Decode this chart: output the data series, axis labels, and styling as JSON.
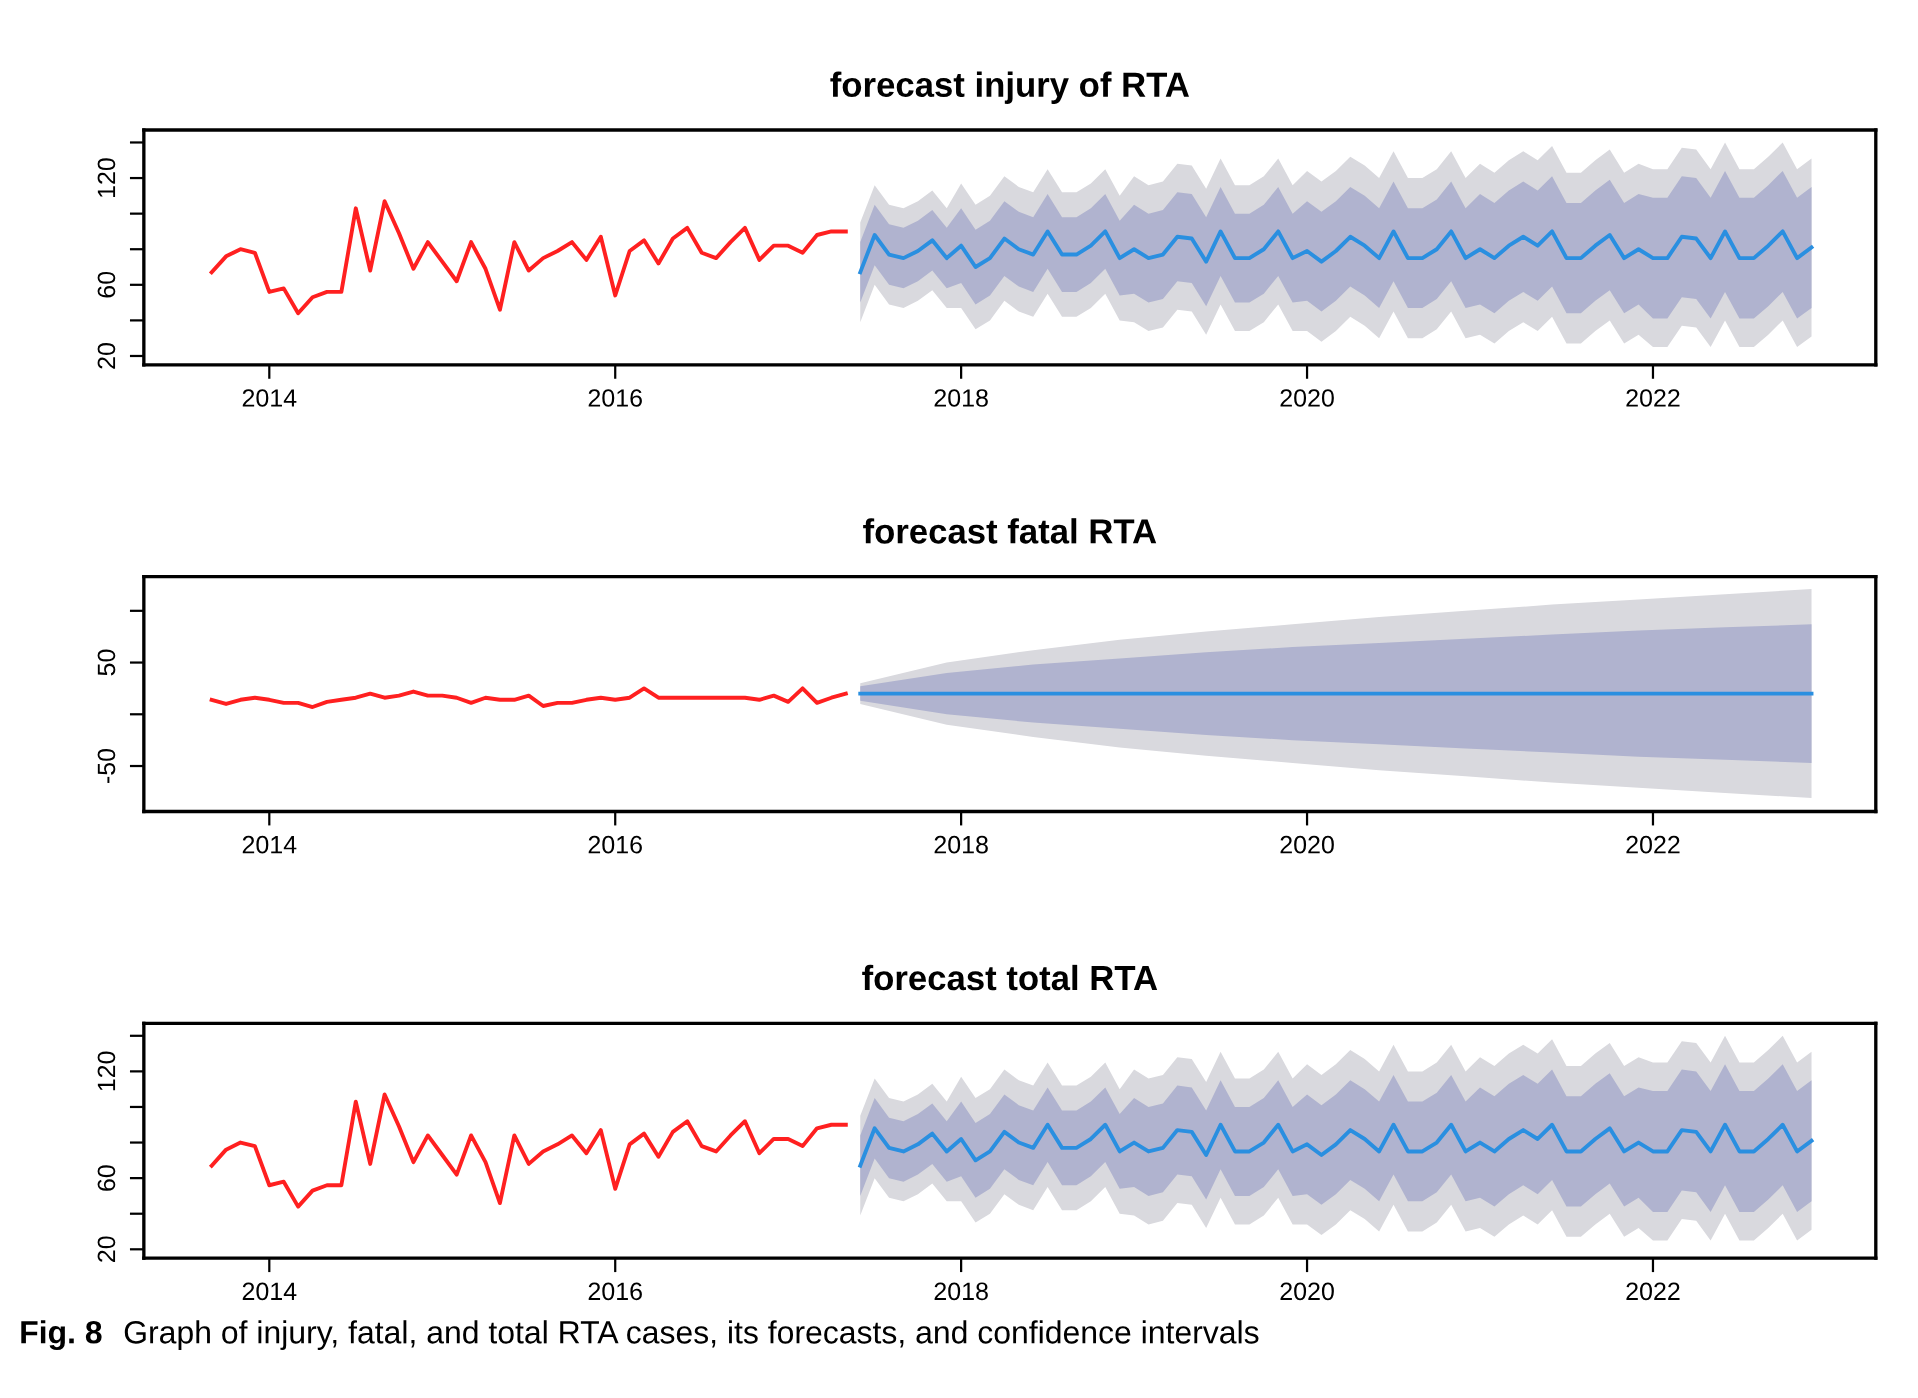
{
  "chart_data": [
    {
      "type": "line",
      "title": "forecast injury of RTA",
      "xlim": [
        "2013-04-10",
        "2023-04-15"
      ],
      "xticks": [
        "2014",
        "2016",
        "2018",
        "2020",
        "2022"
      ],
      "ylim": [
        15,
        147
      ],
      "yticks": [
        {
          "value": 20,
          "label": "20"
        },
        {
          "value": 40,
          "label": null
        },
        {
          "value": 60,
          "label": "60"
        },
        {
          "value": 80,
          "label": null
        },
        {
          "value": 100,
          "label": null
        },
        {
          "value": 120,
          "label": "120"
        },
        {
          "value": 140,
          "label": null
        }
      ],
      "series": [
        {
          "color": "#ff2020",
          "x": [
            "2013-09",
            "2013-10",
            "2013-11",
            "2013-12",
            "2014-01",
            "2014-02",
            "2014-03",
            "2014-04",
            "2014-05",
            "2014-06",
            "2014-07",
            "2014-08",
            "2014-09",
            "2014-10",
            "2014-11",
            "2014-12",
            "2015-01",
            "2015-02",
            "2015-03",
            "2015-04",
            "2015-05",
            "2015-06",
            "2015-07",
            "2015-08",
            "2015-09",
            "2015-10",
            "2015-11",
            "2015-12",
            "2016-01",
            "2016-02",
            "2016-03",
            "2016-04",
            "2016-05",
            "2016-06",
            "2016-07",
            "2016-08",
            "2016-09",
            "2016-10",
            "2016-11",
            "2016-12",
            "2017-01",
            "2017-02",
            "2017-03",
            "2017-04",
            "2017-05"
          ],
          "values": [
            67,
            76,
            80,
            78,
            56,
            58,
            44,
            53,
            56,
            56,
            103,
            68,
            107,
            89,
            69,
            84,
            73,
            62,
            84,
            69,
            46,
            84,
            68,
            75,
            79,
            84,
            74,
            87,
            54,
            79,
            85,
            72,
            86,
            92,
            78,
            75,
            84,
            92,
            74,
            82,
            82,
            78,
            88,
            90,
            90
          ]
        },
        {
          "color": "#d9d9de",
          "x": [
            "2017-06",
            "2017-07",
            "2017-08",
            "2017-09",
            "2017-10",
            "2017-11",
            "2017-12",
            "2018-01",
            "2018-02",
            "2018-03",
            "2018-04",
            "2018-05",
            "2018-06",
            "2018-07",
            "2018-08",
            "2018-09",
            "2018-10",
            "2018-11",
            "2018-12",
            "2019-01",
            "2019-02",
            "2019-03",
            "2019-04",
            "2019-05",
            "2019-06",
            "2019-07",
            "2019-08",
            "2019-09",
            "2019-10",
            "2019-11",
            "2019-12",
            "2020-01",
            "2020-02",
            "2020-03",
            "2020-04",
            "2020-05",
            "2020-06",
            "2020-07",
            "2020-08",
            "2020-09",
            "2020-10",
            "2020-11",
            "2020-12",
            "2021-01",
            "2021-02",
            "2021-03",
            "2021-04",
            "2021-05",
            "2021-06",
            "2021-07",
            "2021-08",
            "2021-09",
            "2021-10",
            "2021-11",
            "2021-12",
            "2022-01",
            "2022-02",
            "2022-03",
            "2022-04",
            "2022-05",
            "2022-06",
            "2022-07",
            "2022-08",
            "2022-09",
            "2022-10",
            "2022-11",
            "2022-12"
          ],
          "values": [
            null,
            null,
            null,
            null,
            null,
            null,
            null,
            null,
            null,
            null,
            null,
            null,
            null,
            null,
            null,
            null,
            null,
            null,
            null,
            null,
            null,
            null,
            null,
            null,
            null,
            null,
            null,
            null,
            null,
            null,
            null,
            null,
            null,
            null,
            null,
            null,
            null,
            null,
            null,
            null,
            null,
            null,
            null,
            null,
            null,
            null,
            null,
            null,
            null,
            null,
            null,
            null,
            null,
            null,
            null,
            null,
            null,
            null,
            null,
            null,
            null,
            null,
            null,
            null,
            null,
            null,
            null
          ],
          "upper": [
            95,
            116,
            105,
            103,
            107,
            113,
            103,
            117,
            105,
            110,
            121,
            115,
            112,
            125,
            112,
            112,
            117,
            125,
            110,
            121,
            116,
            118,
            128,
            127,
            114,
            131,
            116,
            116,
            121,
            131,
            116,
            124,
            118,
            124,
            132,
            127,
            120,
            135,
            120,
            120,
            125,
            135,
            120,
            128,
            123,
            130,
            135,
            130,
            138,
            123,
            123,
            130,
            136,
            123,
            128,
            125,
            125,
            137,
            136,
            125,
            140,
            125,
            125,
            132,
            140,
            125,
            131
          ],
          "lower": [
            39,
            60,
            49,
            47,
            51,
            57,
            47,
            47,
            35,
            40,
            51,
            45,
            42,
            55,
            42,
            42,
            47,
            55,
            40,
            39,
            34,
            36,
            46,
            45,
            32,
            49,
            34,
            34,
            39,
            49,
            34,
            34,
            28,
            34,
            42,
            37,
            30,
            45,
            30,
            30,
            35,
            45,
            30,
            32,
            27,
            34,
            39,
            34,
            42,
            27,
            27,
            34,
            40,
            27,
            32,
            25,
            25,
            37,
            36,
            25,
            40,
            25,
            25,
            32,
            40,
            25,
            31
          ]
        },
        {
          "color": "#b0b3cf",
          "x": [
            "2017-06",
            "2017-07",
            "2017-08",
            "2017-09",
            "2017-10",
            "2017-11",
            "2017-12",
            "2018-01",
            "2018-02",
            "2018-03",
            "2018-04",
            "2018-05",
            "2018-06",
            "2018-07",
            "2018-08",
            "2018-09",
            "2018-10",
            "2018-11",
            "2018-12",
            "2019-01",
            "2019-02",
            "2019-03",
            "2019-04",
            "2019-05",
            "2019-06",
            "2019-07",
            "2019-08",
            "2019-09",
            "2019-10",
            "2019-11",
            "2019-12",
            "2020-01",
            "2020-02",
            "2020-03",
            "2020-04",
            "2020-05",
            "2020-06",
            "2020-07",
            "2020-08",
            "2020-09",
            "2020-10",
            "2020-11",
            "2020-12",
            "2021-01",
            "2021-02",
            "2021-03",
            "2021-04",
            "2021-05",
            "2021-06",
            "2021-07",
            "2021-08",
            "2021-09",
            "2021-10",
            "2021-11",
            "2021-12",
            "2022-01",
            "2022-02",
            "2022-03",
            "2022-04",
            "2022-05",
            "2022-06",
            "2022-07",
            "2022-08",
            "2022-09",
            "2022-10",
            "2022-11",
            "2022-12"
          ],
          "values": [
            null,
            null,
            null,
            null,
            null,
            null,
            null,
            null,
            null,
            null,
            null,
            null,
            null,
            null,
            null,
            null,
            null,
            null,
            null,
            null,
            null,
            null,
            null,
            null,
            null,
            null,
            null,
            null,
            null,
            null,
            null,
            null,
            null,
            null,
            null,
            null,
            null,
            null,
            null,
            null,
            null,
            null,
            null,
            null,
            null,
            null,
            null,
            null,
            null,
            null,
            null,
            null,
            null,
            null,
            null,
            null,
            null,
            null,
            null,
            null,
            null,
            null,
            null,
            null,
            null,
            null,
            null
          ],
          "upper": [
            84,
            105,
            94,
            92,
            96,
            102,
            92,
            103,
            91,
            96,
            107,
            101,
            98,
            111,
            98,
            98,
            103,
            111,
            96,
            105,
            100,
            102,
            112,
            111,
            98,
            115,
            100,
            100,
            105,
            115,
            100,
            107,
            101,
            107,
            115,
            110,
            103,
            118,
            103,
            103,
            108,
            118,
            103,
            111,
            106,
            113,
            118,
            113,
            121,
            106,
            106,
            113,
            119,
            106,
            111,
            109,
            109,
            121,
            120,
            109,
            124,
            109,
            109,
            116,
            124,
            109,
            115
          ],
          "lower": [
            50,
            71,
            60,
            58,
            62,
            68,
            58,
            61,
            49,
            54,
            65,
            59,
            56,
            69,
            56,
            56,
            61,
            69,
            54,
            55,
            50,
            52,
            62,
            61,
            48,
            65,
            50,
            50,
            55,
            65,
            50,
            51,
            45,
            51,
            59,
            54,
            47,
            62,
            47,
            47,
            52,
            62,
            47,
            49,
            44,
            51,
            56,
            51,
            59,
            44,
            44,
            51,
            57,
            44,
            49,
            41,
            41,
            53,
            52,
            41,
            56,
            41,
            41,
            48,
            56,
            41,
            47
          ]
        },
        {
          "color": "#2a8fe0",
          "x": [
            "2017-06",
            "2017-07",
            "2017-08",
            "2017-09",
            "2017-10",
            "2017-11",
            "2017-12",
            "2018-01",
            "2018-02",
            "2018-03",
            "2018-04",
            "2018-05",
            "2018-06",
            "2018-07",
            "2018-08",
            "2018-09",
            "2018-10",
            "2018-11",
            "2018-12",
            "2019-01",
            "2019-02",
            "2019-03",
            "2019-04",
            "2019-05",
            "2019-06",
            "2019-07",
            "2019-08",
            "2019-09",
            "2019-10",
            "2019-11",
            "2019-12",
            "2020-01",
            "2020-02",
            "2020-03",
            "2020-04",
            "2020-05",
            "2020-06",
            "2020-07",
            "2020-08",
            "2020-09",
            "2020-10",
            "2020-11",
            "2020-12",
            "2021-01",
            "2021-02",
            "2021-03",
            "2021-04",
            "2021-05",
            "2021-06",
            "2021-07",
            "2021-08",
            "2021-09",
            "2021-10",
            "2021-11",
            "2021-12",
            "2022-01",
            "2022-02",
            "2022-03",
            "2022-04",
            "2022-05",
            "2022-06",
            "2022-07",
            "2022-08",
            "2022-09",
            "2022-10",
            "2022-11",
            "2022-12"
          ],
          "values": [
            67,
            88,
            77,
            75,
            79,
            85,
            75,
            82,
            70,
            75,
            86,
            80,
            77,
            90,
            77,
            77,
            82,
            90,
            75,
            80,
            75,
            77,
            87,
            86,
            73,
            90,
            75,
            75,
            80,
            90,
            75,
            79,
            73,
            79,
            87,
            82,
            75,
            90,
            75,
            75,
            80,
            90,
            75,
            80,
            75,
            82,
            87,
            82,
            90,
            75,
            75,
            82,
            88,
            75,
            80,
            75,
            75,
            87,
            86,
            75,
            90,
            75,
            75,
            82,
            90,
            75,
            81
          ]
        }
      ]
    },
    {
      "type": "line",
      "title": "forecast fatal RTA",
      "xlim": [
        "2013-04-10",
        "2023-04-15"
      ],
      "xticks": [
        "2014",
        "2016",
        "2018",
        "2020",
        "2022"
      ],
      "ylim": [
        -94,
        133
      ],
      "yticks": [
        {
          "value": -50,
          "label": "-50"
        },
        {
          "value": 0,
          "label": null
        },
        {
          "value": 50,
          "label": "50"
        },
        {
          "value": 100,
          "label": null
        }
      ],
      "series": [
        {
          "color": "#ff2020",
          "x": [
            "2013-09",
            "2013-10",
            "2013-11",
            "2013-12",
            "2014-01",
            "2014-02",
            "2014-03",
            "2014-04",
            "2014-05",
            "2014-06",
            "2014-07",
            "2014-08",
            "2014-09",
            "2014-10",
            "2014-11",
            "2014-12",
            "2015-01",
            "2015-02",
            "2015-03",
            "2015-04",
            "2015-05",
            "2015-06",
            "2015-07",
            "2015-08",
            "2015-09",
            "2015-10",
            "2015-11",
            "2015-12",
            "2016-01",
            "2016-02",
            "2016-03",
            "2016-04",
            "2016-05",
            "2016-06",
            "2016-07",
            "2016-08",
            "2016-09",
            "2016-10",
            "2016-11",
            "2016-12",
            "2017-01",
            "2017-02",
            "2017-03",
            "2017-04",
            "2017-05"
          ],
          "values": [
            14,
            10,
            14,
            16,
            14,
            11,
            11,
            7,
            12,
            14,
            16,
            20,
            16,
            18,
            22,
            18,
            18,
            16,
            11,
            16,
            14,
            14,
            18,
            8,
            11,
            11,
            14,
            16,
            14,
            16,
            25,
            16,
            16,
            16,
            16,
            16,
            16,
            16,
            14,
            18,
            12,
            25,
            11,
            16,
            20
          ]
        },
        {
          "color": "#d9d9de",
          "x": [
            "2017-06",
            "2017-12",
            "2018-06",
            "2018-12",
            "2019-06",
            "2019-12",
            "2020-06",
            "2020-12",
            "2021-06",
            "2021-12",
            "2022-06",
            "2022-12"
          ],
          "values": [
            null,
            null,
            null,
            null,
            null,
            null,
            null,
            null,
            null,
            null,
            null,
            null
          ],
          "upper": [
            30,
            50,
            62,
            72,
            80,
            87,
            94,
            100,
            106,
            111,
            116,
            121
          ],
          "lower": [
            10,
            -10,
            -22,
            -32,
            -40,
            -47,
            -54,
            -60,
            -66,
            -71,
            -76,
            -81
          ]
        },
        {
          "color": "#b0b3cf",
          "x": [
            "2017-06",
            "2017-12",
            "2018-06",
            "2018-12",
            "2019-06",
            "2019-12",
            "2020-06",
            "2020-12",
            "2021-06",
            "2021-12",
            "2022-06",
            "2022-12"
          ],
          "values": [
            null,
            null,
            null,
            null,
            null,
            null,
            null,
            null,
            null,
            null,
            null,
            null
          ],
          "upper": [
            27,
            40,
            48,
            54,
            60,
            65,
            69,
            73,
            77,
            81,
            84,
            87
          ],
          "lower": [
            13,
            0,
            -8,
            -14,
            -20,
            -25,
            -29,
            -33,
            -37,
            -41,
            -44,
            -47
          ]
        },
        {
          "color": "#2a8fe0",
          "x": [
            "2017-06",
            "2017-12",
            "2018-06",
            "2018-12",
            "2019-06",
            "2019-12",
            "2020-06",
            "2020-12",
            "2021-06",
            "2021-12",
            "2022-06",
            "2022-12"
          ],
          "values": [
            20,
            20,
            20,
            20,
            20,
            20,
            20,
            20,
            20,
            20,
            20,
            20
          ]
        }
      ]
    },
    {
      "type": "line",
      "title": "forecast total RTA",
      "xlim": [
        "2013-04-10",
        "2023-04-15"
      ],
      "xticks": [
        "2014",
        "2016",
        "2018",
        "2020",
        "2022"
      ],
      "ylim": [
        15,
        147
      ],
      "yticks": [
        {
          "value": 20,
          "label": "20"
        },
        {
          "value": 40,
          "label": null
        },
        {
          "value": 60,
          "label": "60"
        },
        {
          "value": 80,
          "label": null
        },
        {
          "value": 100,
          "label": null
        },
        {
          "value": 120,
          "label": "120"
        },
        {
          "value": 140,
          "label": null
        }
      ],
      "annotations": [
        "Fig. 8",
        "Graph of injury, fatal, and total RTA cases, its forecasts, and confidence intervals"
      ],
      "series": [
        {
          "color": "#ff2020",
          "x": [
            "2013-09",
            "2013-10",
            "2013-11",
            "2013-12",
            "2014-01",
            "2014-02",
            "2014-03",
            "2014-04",
            "2014-05",
            "2014-06",
            "2014-07",
            "2014-08",
            "2014-09",
            "2014-10",
            "2014-11",
            "2014-12",
            "2015-01",
            "2015-02",
            "2015-03",
            "2015-04",
            "2015-05",
            "2015-06",
            "2015-07",
            "2015-08",
            "2015-09",
            "2015-10",
            "2015-11",
            "2015-12",
            "2016-01",
            "2016-02",
            "2016-03",
            "2016-04",
            "2016-05",
            "2016-06",
            "2016-07",
            "2016-08",
            "2016-09",
            "2016-10",
            "2016-11",
            "2016-12",
            "2017-01",
            "2017-02",
            "2017-03",
            "2017-04",
            "2017-05"
          ],
          "values": [
            67,
            76,
            80,
            78,
            56,
            58,
            44,
            53,
            56,
            56,
            103,
            68,
            107,
            89,
            69,
            84,
            73,
            62,
            84,
            69,
            46,
            84,
            68,
            75,
            79,
            84,
            74,
            87,
            54,
            79,
            85,
            72,
            86,
            92,
            78,
            75,
            84,
            92,
            74,
            82,
            82,
            78,
            88,
            90,
            90
          ]
        },
        {
          "color": "#d9d9de",
          "x": [
            "2017-06",
            "2017-07",
            "2017-08",
            "2017-09",
            "2017-10",
            "2017-11",
            "2017-12",
            "2018-01",
            "2018-02",
            "2018-03",
            "2018-04",
            "2018-05",
            "2018-06",
            "2018-07",
            "2018-08",
            "2018-09",
            "2018-10",
            "2018-11",
            "2018-12",
            "2019-01",
            "2019-02",
            "2019-03",
            "2019-04",
            "2019-05",
            "2019-06",
            "2019-07",
            "2019-08",
            "2019-09",
            "2019-10",
            "2019-11",
            "2019-12",
            "2020-01",
            "2020-02",
            "2020-03",
            "2020-04",
            "2020-05",
            "2020-06",
            "2020-07",
            "2020-08",
            "2020-09",
            "2020-10",
            "2020-11",
            "2020-12",
            "2021-01",
            "2021-02",
            "2021-03",
            "2021-04",
            "2021-05",
            "2021-06",
            "2021-07",
            "2021-08",
            "2021-09",
            "2021-10",
            "2021-11",
            "2021-12",
            "2022-01",
            "2022-02",
            "2022-03",
            "2022-04",
            "2022-05",
            "2022-06",
            "2022-07",
            "2022-08",
            "2022-09",
            "2022-10",
            "2022-11",
            "2022-12"
          ],
          "values": [
            null,
            null,
            null,
            null,
            null,
            null,
            null,
            null,
            null,
            null,
            null,
            null,
            null,
            null,
            null,
            null,
            null,
            null,
            null,
            null,
            null,
            null,
            null,
            null,
            null,
            null,
            null,
            null,
            null,
            null,
            null,
            null,
            null,
            null,
            null,
            null,
            null,
            null,
            null,
            null,
            null,
            null,
            null,
            null,
            null,
            null,
            null,
            null,
            null,
            null,
            null,
            null,
            null,
            null,
            null,
            null,
            null,
            null,
            null,
            null,
            null,
            null,
            null,
            null,
            null,
            null,
            null
          ],
          "upper": [
            95,
            116,
            105,
            103,
            107,
            113,
            103,
            117,
            105,
            110,
            121,
            115,
            112,
            125,
            112,
            112,
            117,
            125,
            110,
            121,
            116,
            118,
            128,
            127,
            114,
            131,
            116,
            116,
            121,
            131,
            116,
            124,
            118,
            124,
            132,
            127,
            120,
            135,
            120,
            120,
            125,
            135,
            120,
            128,
            123,
            130,
            135,
            130,
            138,
            123,
            123,
            130,
            136,
            123,
            128,
            125,
            125,
            137,
            136,
            125,
            140,
            125,
            125,
            132,
            140,
            125,
            131
          ],
          "lower": [
            39,
            60,
            49,
            47,
            51,
            57,
            47,
            47,
            35,
            40,
            51,
            45,
            42,
            55,
            42,
            42,
            47,
            55,
            40,
            39,
            34,
            36,
            46,
            45,
            32,
            49,
            34,
            34,
            39,
            49,
            34,
            34,
            28,
            34,
            42,
            37,
            30,
            45,
            30,
            30,
            35,
            45,
            30,
            32,
            27,
            34,
            39,
            34,
            42,
            27,
            27,
            34,
            40,
            27,
            32,
            25,
            25,
            37,
            36,
            25,
            40,
            25,
            25,
            32,
            40,
            25,
            31
          ]
        },
        {
          "color": "#b0b3cf",
          "x": [
            "2017-06",
            "2017-07",
            "2017-08",
            "2017-09",
            "2017-10",
            "2017-11",
            "2017-12",
            "2018-01",
            "2018-02",
            "2018-03",
            "2018-04",
            "2018-05",
            "2018-06",
            "2018-07",
            "2018-08",
            "2018-09",
            "2018-10",
            "2018-11",
            "2018-12",
            "2019-01",
            "2019-02",
            "2019-03",
            "2019-04",
            "2019-05",
            "2019-06",
            "2019-07",
            "2019-08",
            "2019-09",
            "2019-10",
            "2019-11",
            "2019-12",
            "2020-01",
            "2020-02",
            "2020-03",
            "2020-04",
            "2020-05",
            "2020-06",
            "2020-07",
            "2020-08",
            "2020-09",
            "2020-10",
            "2020-11",
            "2020-12",
            "2021-01",
            "2021-02",
            "2021-03",
            "2021-04",
            "2021-05",
            "2021-06",
            "2021-07",
            "2021-08",
            "2021-09",
            "2021-10",
            "2021-11",
            "2021-12",
            "2022-01",
            "2022-02",
            "2022-03",
            "2022-04",
            "2022-05",
            "2022-06",
            "2022-07",
            "2022-08",
            "2022-09",
            "2022-10",
            "2022-11",
            "2022-12"
          ],
          "values": [
            null,
            null,
            null,
            null,
            null,
            null,
            null,
            null,
            null,
            null,
            null,
            null,
            null,
            null,
            null,
            null,
            null,
            null,
            null,
            null,
            null,
            null,
            null,
            null,
            null,
            null,
            null,
            null,
            null,
            null,
            null,
            null,
            null,
            null,
            null,
            null,
            null,
            null,
            null,
            null,
            null,
            null,
            null,
            null,
            null,
            null,
            null,
            null,
            null,
            null,
            null,
            null,
            null,
            null,
            null,
            null,
            null,
            null,
            null,
            null,
            null,
            null,
            null,
            null,
            null,
            null,
            null
          ],
          "upper": [
            84,
            105,
            94,
            92,
            96,
            102,
            92,
            103,
            91,
            96,
            107,
            101,
            98,
            111,
            98,
            98,
            103,
            111,
            96,
            105,
            100,
            102,
            112,
            111,
            98,
            115,
            100,
            100,
            105,
            115,
            100,
            107,
            101,
            107,
            115,
            110,
            103,
            118,
            103,
            103,
            108,
            118,
            103,
            111,
            106,
            113,
            118,
            113,
            121,
            106,
            106,
            113,
            119,
            106,
            111,
            109,
            109,
            121,
            120,
            109,
            124,
            109,
            109,
            116,
            124,
            109,
            115
          ],
          "lower": [
            50,
            71,
            60,
            58,
            62,
            68,
            58,
            61,
            49,
            54,
            65,
            59,
            56,
            69,
            56,
            56,
            61,
            69,
            54,
            55,
            50,
            52,
            62,
            61,
            48,
            65,
            50,
            50,
            55,
            65,
            50,
            51,
            45,
            51,
            59,
            54,
            47,
            62,
            47,
            47,
            52,
            62,
            47,
            49,
            44,
            51,
            56,
            51,
            59,
            44,
            44,
            51,
            57,
            44,
            49,
            41,
            41,
            53,
            52,
            41,
            56,
            41,
            41,
            48,
            56,
            41,
            47
          ]
        },
        {
          "color": "#2a8fe0",
          "x": [
            "2017-06",
            "2017-07",
            "2017-08",
            "2017-09",
            "2017-10",
            "2017-11",
            "2017-12",
            "2018-01",
            "2018-02",
            "2018-03",
            "2018-04",
            "2018-05",
            "2018-06",
            "2018-07",
            "2018-08",
            "2018-09",
            "2018-10",
            "2018-11",
            "2018-12",
            "2019-01",
            "2019-02",
            "2019-03",
            "2019-04",
            "2019-05",
            "2019-06",
            "2019-07",
            "2019-08",
            "2019-09",
            "2019-10",
            "2019-11",
            "2019-12",
            "2020-01",
            "2020-02",
            "2020-03",
            "2020-04",
            "2020-05",
            "2020-06",
            "2020-07",
            "2020-08",
            "2020-09",
            "2020-10",
            "2020-11",
            "2020-12",
            "2021-01",
            "2021-02",
            "2021-03",
            "2021-04",
            "2021-05",
            "2021-06",
            "2021-07",
            "2021-08",
            "2021-09",
            "2021-10",
            "2021-11",
            "2021-12",
            "2022-01",
            "2022-02",
            "2022-03",
            "2022-04",
            "2022-05",
            "2022-06",
            "2022-07",
            "2022-08",
            "2022-09",
            "2022-10",
            "2022-11",
            "2022-12"
          ],
          "values": [
            67,
            88,
            77,
            75,
            79,
            85,
            75,
            82,
            70,
            75,
            86,
            80,
            77,
            90,
            77,
            77,
            82,
            90,
            75,
            80,
            75,
            77,
            87,
            86,
            73,
            90,
            75,
            75,
            80,
            90,
            75,
            79,
            73,
            79,
            87,
            82,
            75,
            90,
            75,
            75,
            80,
            90,
            75,
            80,
            75,
            82,
            87,
            82,
            90,
            75,
            75,
            82,
            88,
            75,
            80,
            75,
            75,
            87,
            86,
            75,
            90,
            75,
            75,
            82,
            90,
            75,
            81
          ]
        }
      ]
    }
  ]
}
